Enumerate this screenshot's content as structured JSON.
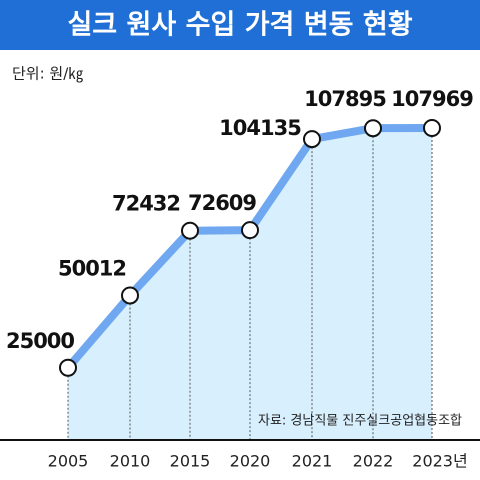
{
  "chart_data": {
    "type": "line",
    "title": "실크 원사 수입 가격 변동 현황",
    "unit": "단위: 원/㎏",
    "source": "자료: 경남직물 진주실크공업협동조합",
    "categories": [
      "2005",
      "2010",
      "2015",
      "2020",
      "2021",
      "2022",
      "2023년"
    ],
    "values": [
      25000,
      50012,
      72432,
      72609,
      104135,
      107895,
      107969
    ],
    "color": "#6fa8f0",
    "area_color": "#d8effd"
  }
}
